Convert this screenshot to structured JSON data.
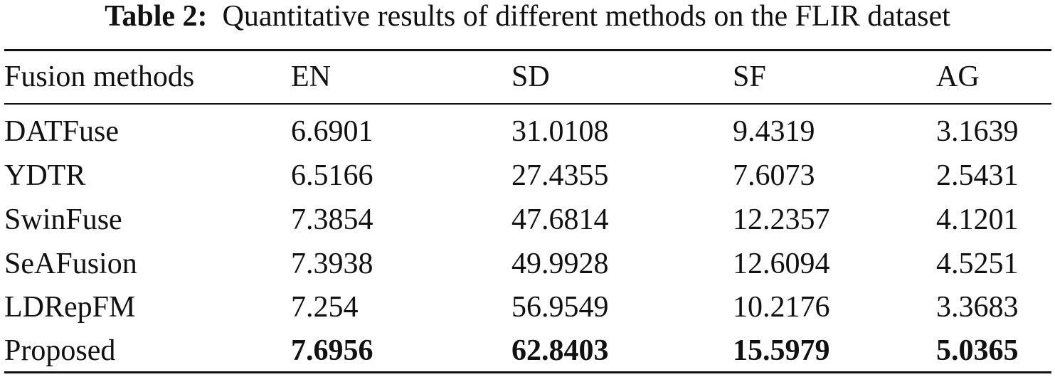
{
  "caption": {
    "label": "Table 2:",
    "text": "Quantitative results of different methods on the FLIR dataset"
  },
  "table": {
    "headers": [
      "Fusion methods",
      "EN",
      "SD",
      "SF",
      "AG"
    ],
    "rows": [
      [
        "DATFuse",
        "6.6901",
        "31.0108",
        "9.4319",
        "3.1639"
      ],
      [
        "YDTR",
        "6.5166",
        "27.4355",
        "7.6073",
        "2.5431"
      ],
      [
        "SwinFuse",
        "7.3854",
        "47.6814",
        "12.2357",
        "4.1201"
      ],
      [
        "SeAFusion",
        "7.3938",
        "49.9928",
        "12.6094",
        "4.5251"
      ],
      [
        "LDRepFM",
        "7.254",
        "56.9549",
        "10.2176",
        "3.3683"
      ],
      [
        "Proposed",
        "7.6956",
        "62.8403",
        "15.5979",
        "5.0365"
      ]
    ],
    "bold_row": "Proposed"
  }
}
